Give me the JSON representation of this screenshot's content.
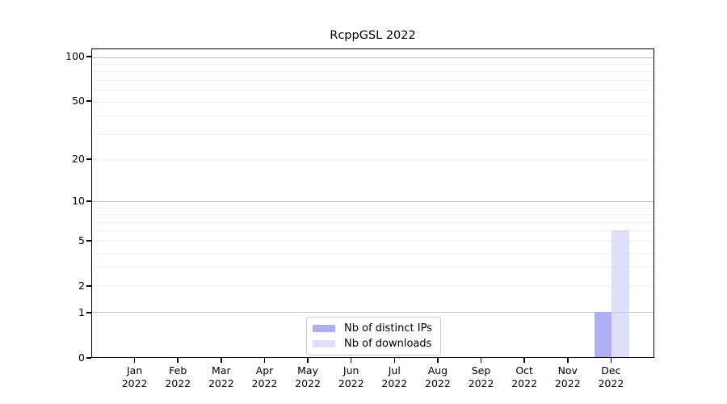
{
  "chart_data": {
    "type": "bar",
    "title": "RcppGSL 2022",
    "categories": [
      "Jan 2022",
      "Feb 2022",
      "Mar 2022",
      "Apr 2022",
      "May 2022",
      "Jun 2022",
      "Jul 2022",
      "Aug 2022",
      "Sep 2022",
      "Oct 2022",
      "Nov 2022",
      "Dec 2022"
    ],
    "series": [
      {
        "name": "Nb of distinct IPs",
        "color": "#aeaef2",
        "values": [
          0,
          0,
          0,
          0,
          0,
          0,
          0,
          0,
          0,
          0,
          0,
          1
        ]
      },
      {
        "name": "Nb of downloads",
        "color": "rgba(203,203,247,0.62)",
        "values": [
          0,
          0,
          0,
          0,
          0,
          0,
          0,
          0,
          0,
          0,
          0,
          6
        ]
      }
    ],
    "xlabel": "",
    "ylabel": "",
    "yscale": "log1p",
    "ylim": [
      0,
      113
    ],
    "yticks": [
      0,
      1,
      2,
      5,
      10,
      20,
      50,
      100
    ],
    "major_gridlines": [
      1,
      10,
      100
    ],
    "minor_gridlines": [
      2,
      3,
      4,
      5,
      6,
      7,
      8,
      9,
      20,
      30,
      40,
      50,
      60,
      70,
      80,
      90
    ],
    "grid": true,
    "legend_position": "bottom-center",
    "frame_color": "#000000",
    "major_grid_color": "#c3c3c3",
    "minor_grid_color": "#ededed"
  }
}
